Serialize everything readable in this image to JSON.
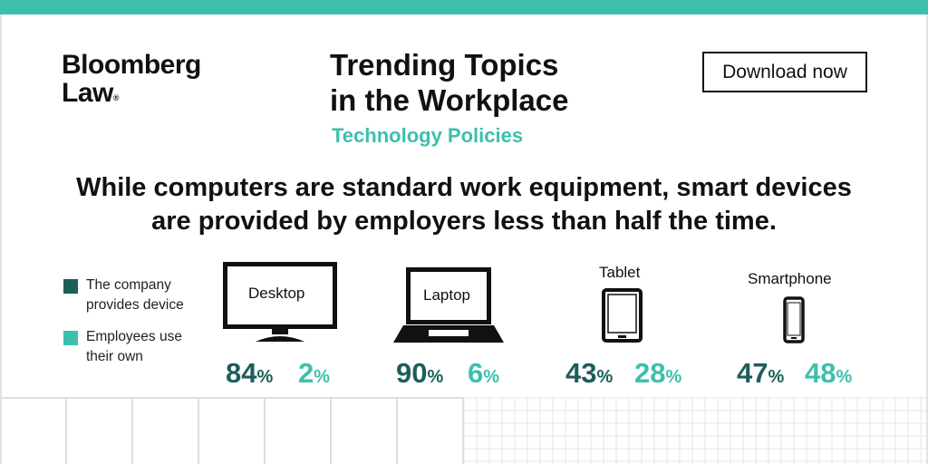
{
  "brand": {
    "line1": "Bloomberg",
    "line2": "Law",
    "mark": "®"
  },
  "header": {
    "title_line1": "Trending Topics",
    "title_line2": "in the Workplace",
    "subtitle": "Technology Policies",
    "download_label": "Download now"
  },
  "headline": {
    "line1": "While computers are standard work equipment, smart devices",
    "line2": "are provided by employers less than half the time."
  },
  "colors": {
    "accent": "#3dbfad",
    "company": "#1d5e5a",
    "employee": "#3dbfad"
  },
  "legend": [
    {
      "label_line1": "The company",
      "label_line2": "provides device",
      "color": "#1d5e5a"
    },
    {
      "label_line1": "Employees use",
      "label_line2": "their own",
      "color": "#3dbfad"
    }
  ],
  "chart_data": {
    "type": "table",
    "categories": [
      "Desktop",
      "Laptop",
      "Tablet",
      "Smartphone"
    ],
    "series": [
      {
        "name": "The company provides device",
        "values": [
          84,
          90,
          43,
          47
        ]
      },
      {
        "name": "Employees use their own",
        "values": [
          2,
          6,
          28,
          48
        ]
      }
    ],
    "unit": "%",
    "icons": [
      "desktop-monitor-icon",
      "laptop-icon",
      "tablet-icon",
      "smartphone-icon"
    ]
  }
}
